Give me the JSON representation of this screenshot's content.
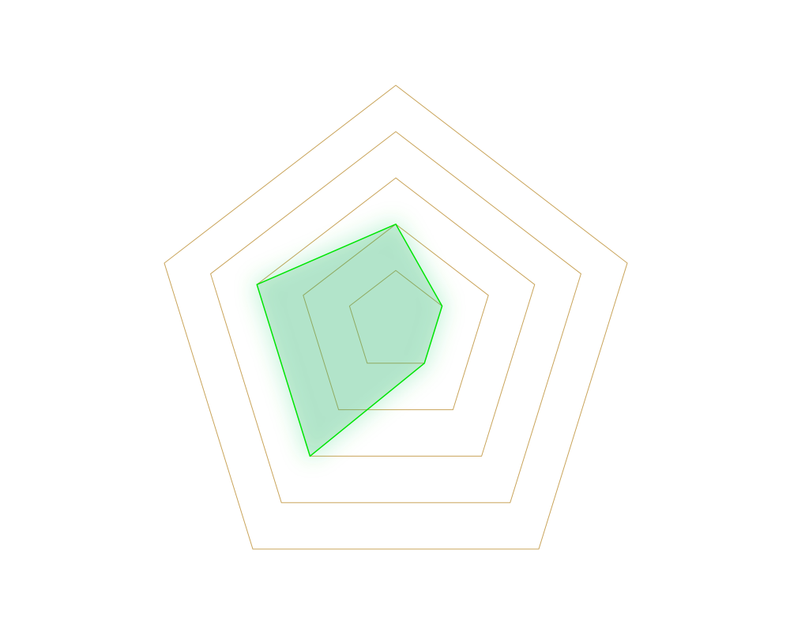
{
  "chart_data": {
    "type": "radar",
    "categories": [
      null,
      null,
      null,
      null,
      null
    ],
    "series": [
      {
        "color": "#00e600",
        "fill": "#2eb46e",
        "values": [
          2,
          1,
          1,
          3,
          3
        ]
      }
    ],
    "ylim": [
      0,
      5
    ],
    "yticks": [
      1,
      2,
      3,
      4,
      5
    ],
    "grid": true,
    "grid_color": "#c9a45a"
  }
}
